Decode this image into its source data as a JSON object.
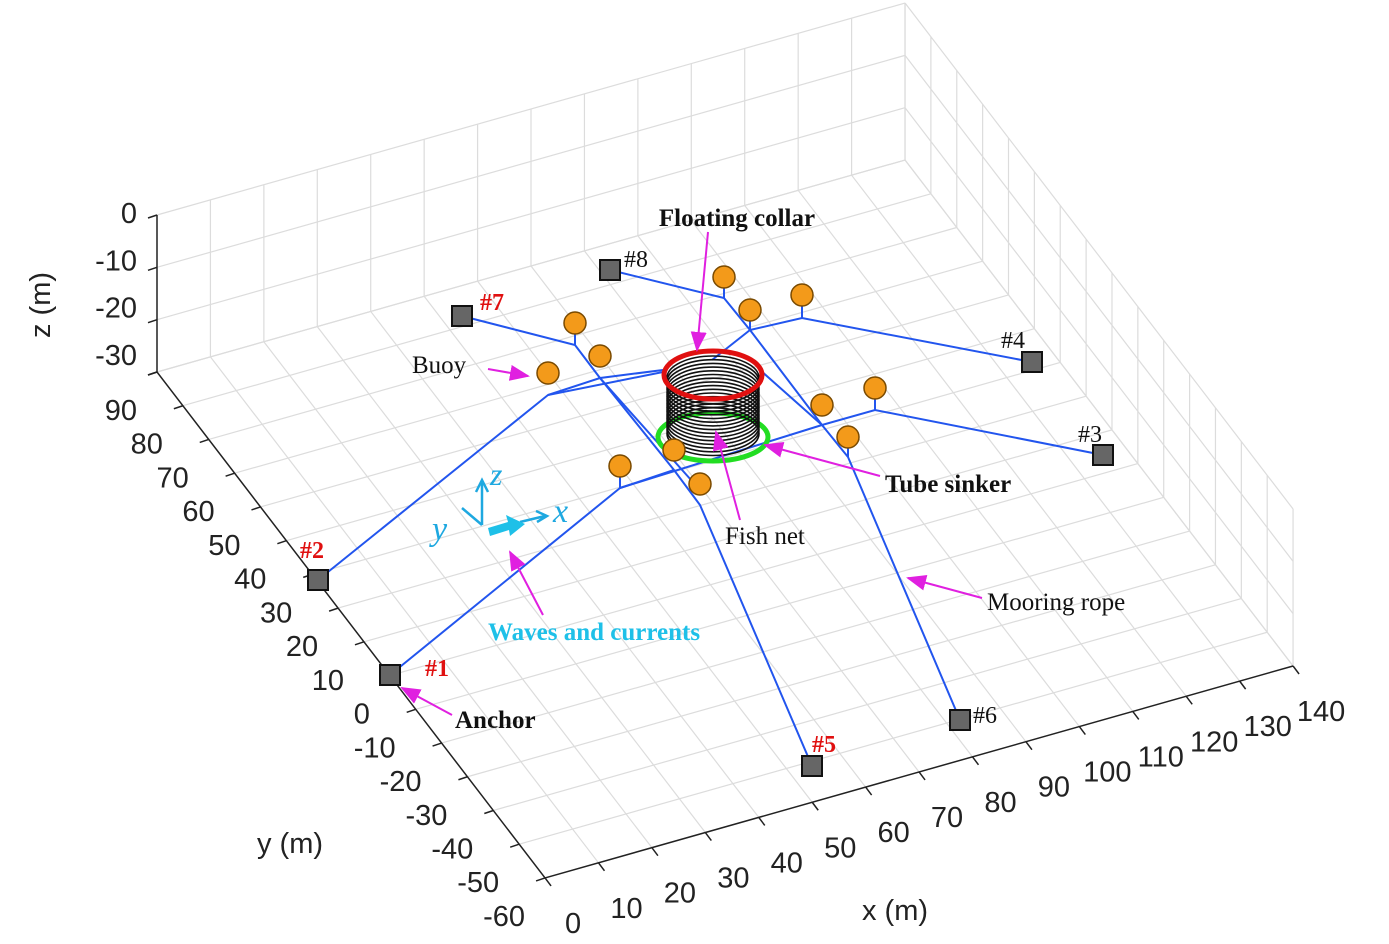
{
  "axes": {
    "x_label": "x (m)",
    "y_label": "y (m)",
    "z_label": "z (m)",
    "x_ticks": [
      0,
      10,
      20,
      30,
      40,
      50,
      60,
      70,
      80,
      90,
      100,
      110,
      120,
      130,
      140
    ],
    "y_ticks": [
      90,
      80,
      70,
      60,
      50,
      40,
      30,
      20,
      10,
      0,
      -10,
      -20,
      -30,
      -40,
      -50,
      -60
    ],
    "z_ticks": [
      0,
      -10,
      -20,
      -30
    ]
  },
  "anchors": [
    "#1",
    "#2",
    "#3",
    "#4",
    "#5",
    "#6",
    "#7",
    "#8"
  ],
  "annotations": {
    "floating_collar": "Floating collar",
    "buoy": "Buoy",
    "tube_sinker": "Tube sinker",
    "fish_net": "Fish net",
    "mooring_rope": "Mooring rope",
    "waves_currents": "Waves and currents",
    "anchor": "Anchor"
  },
  "coordinate_axes": {
    "x": "x",
    "y": "y",
    "z": "z"
  }
}
